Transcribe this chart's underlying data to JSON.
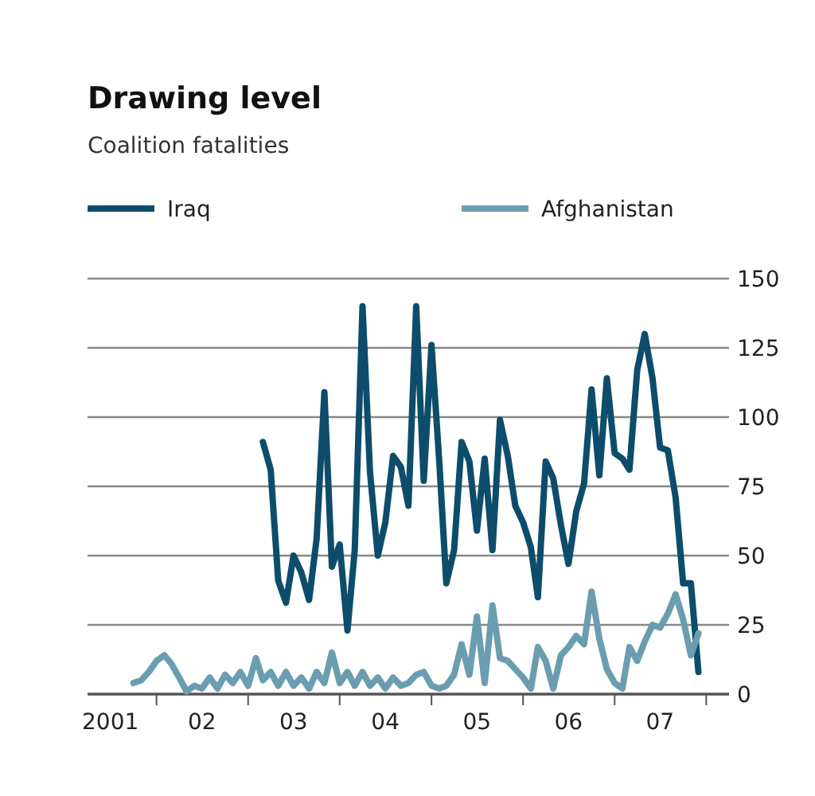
{
  "chart_data": {
    "type": "line",
    "title": "Drawing level",
    "subtitle": "Coalition fatalities",
    "x": [
      "2001-10",
      "2001-11",
      "2001-12",
      "2002-01",
      "2002-02",
      "2002-03",
      "2002-04",
      "2002-05",
      "2002-06",
      "2002-07",
      "2002-08",
      "2002-09",
      "2002-10",
      "2002-11",
      "2002-12",
      "2003-01",
      "2003-02",
      "2003-03",
      "2003-04",
      "2003-05",
      "2003-06",
      "2003-07",
      "2003-08",
      "2003-09",
      "2003-10",
      "2003-11",
      "2003-12",
      "2004-01",
      "2004-02",
      "2004-03",
      "2004-04",
      "2004-05",
      "2004-06",
      "2004-07",
      "2004-08",
      "2004-09",
      "2004-10",
      "2004-11",
      "2004-12",
      "2005-01",
      "2005-02",
      "2005-03",
      "2005-04",
      "2005-05",
      "2005-06",
      "2005-07",
      "2005-08",
      "2005-09",
      "2005-10",
      "2005-11",
      "2005-12",
      "2006-01",
      "2006-02",
      "2006-03",
      "2006-04",
      "2006-05",
      "2006-06",
      "2006-07",
      "2006-08",
      "2006-09",
      "2006-10",
      "2006-11",
      "2006-12",
      "2007-01",
      "2007-02",
      "2007-03",
      "2007-04",
      "2007-05",
      "2007-06",
      "2007-07",
      "2007-08",
      "2007-09",
      "2007-10",
      "2007-11",
      "2007-12"
    ],
    "series": [
      {
        "name": "Iraq",
        "color": "#0d4d6b",
        "values": [
          null,
          null,
          null,
          null,
          null,
          null,
          null,
          null,
          null,
          null,
          null,
          null,
          null,
          null,
          null,
          null,
          null,
          91,
          81,
          41,
          33,
          50,
          44,
          34,
          56,
          109,
          46,
          54,
          23,
          52,
          140,
          80,
          50,
          62,
          86,
          82,
          68,
          140,
          77,
          126,
          84,
          40,
          52,
          91,
          84,
          59,
          85,
          52,
          99,
          86,
          68,
          62,
          53,
          35,
          84,
          78,
          61,
          47,
          66,
          76,
          110,
          79,
          114,
          87,
          85,
          81,
          117,
          130,
          114,
          89,
          88,
          71,
          40,
          40,
          8
        ]
      },
      {
        "name": "Afghanistan",
        "color": "#6b9db0",
        "values": [
          4,
          5,
          8,
          12,
          14,
          11,
          6,
          1,
          3,
          2,
          6,
          2,
          7,
          4,
          8,
          3,
          13,
          5,
          8,
          3,
          8,
          3,
          6,
          2,
          8,
          4,
          15,
          4,
          8,
          3,
          8,
          3,
          6,
          2,
          6,
          3,
          4,
          7,
          8,
          3,
          2,
          3,
          7,
          18,
          7,
          28,
          4,
          32,
          13,
          12,
          9,
          6,
          2,
          17,
          12,
          2,
          14,
          17,
          21,
          18,
          37,
          20,
          9,
          4,
          2,
          17,
          12,
          19,
          25,
          24,
          29,
          36,
          27,
          14,
          22
        ]
      }
    ],
    "xlim": [
      "2001-04",
      "2008-04"
    ],
    "xticks": [
      {
        "value": "2002-01",
        "label": null
      },
      {
        "value": "2003-01",
        "label": null
      },
      {
        "value": "2004-01",
        "label": null
      },
      {
        "value": "2005-01",
        "label": null
      },
      {
        "value": "2006-01",
        "label": null
      },
      {
        "value": "2007-01",
        "label": null
      },
      {
        "value": "2008-01",
        "label": null
      },
      {
        "value": "2001-07",
        "label": "2001"
      },
      {
        "value": "2002-07",
        "label": "02"
      },
      {
        "value": "2003-07",
        "label": "03"
      },
      {
        "value": "2004-07",
        "label": "04"
      },
      {
        "value": "2005-07",
        "label": "05"
      },
      {
        "value": "2006-07",
        "label": "06"
      },
      {
        "value": "2007-07",
        "label": "07"
      }
    ],
    "ylim": [
      0,
      150
    ],
    "yticks": [
      0,
      25,
      50,
      75,
      100,
      125,
      150
    ],
    "grid": "y",
    "legend": "top",
    "line_style": "solid",
    "marker": "none"
  }
}
